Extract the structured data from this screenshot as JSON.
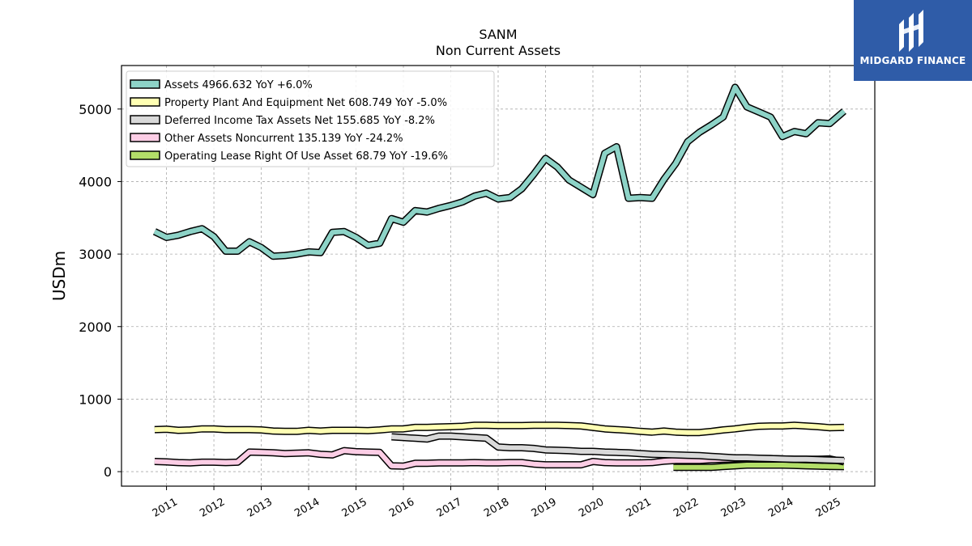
{
  "brand": {
    "name": "MIDGARD FINANCE"
  },
  "chart_data": {
    "type": "line",
    "title": "SANM",
    "subtitle": "Non Current  Assets",
    "ylabel": "USDm",
    "xlabel": "",
    "ylim": [
      -200,
      5600
    ],
    "xlim": [
      2010.05,
      2025.95
    ],
    "yticks": [
      0,
      1000,
      2000,
      3000,
      4000,
      5000
    ],
    "xticks": [
      2011,
      2012,
      2013,
      2014,
      2015,
      2016,
      2017,
      2018,
      2019,
      2020,
      2021,
      2022,
      2023,
      2024,
      2025
    ],
    "grid": true,
    "legend_position": "top-left",
    "series": [
      {
        "name": "Assets",
        "legend": "Assets  4966.632 YoY +6.0%",
        "color": "#8dd3c7",
        "x": [
          2010.75,
          2011.0,
          2011.25,
          2011.5,
          2011.75,
          2012.0,
          2012.25,
          2012.5,
          2012.75,
          2013.0,
          2013.25,
          2013.5,
          2013.75,
          2014.0,
          2014.25,
          2014.5,
          2014.75,
          2015.0,
          2015.25,
          2015.5,
          2015.75,
          2016.0,
          2016.25,
          2016.5,
          2016.75,
          2017.0,
          2017.25,
          2017.5,
          2017.75,
          2018.0,
          2018.25,
          2018.5,
          2018.75,
          2019.0,
          2019.25,
          2019.5,
          2019.75,
          2020.0,
          2020.25,
          2020.5,
          2020.75,
          2021.0,
          2021.25,
          2021.5,
          2021.75,
          2022.0,
          2022.25,
          2022.5,
          2022.75,
          2023.0,
          2023.25,
          2023.5,
          2023.75,
          2024.0,
          2024.25,
          2024.5,
          2024.75,
          2025.0,
          2025.3
        ],
        "values": [
          3310,
          3230,
          3260,
          3310,
          3350,
          3240,
          3040,
          3040,
          3170,
          3090,
          2970,
          2980,
          3000,
          3030,
          3020,
          3300,
          3310,
          3230,
          3120,
          3150,
          3490,
          3440,
          3600,
          3580,
          3630,
          3670,
          3720,
          3800,
          3840,
          3760,
          3780,
          3900,
          4100,
          4320,
          4200,
          4020,
          3920,
          3820,
          4390,
          4480,
          3770,
          3780,
          3770,
          4030,
          4250,
          4550,
          4680,
          4780,
          4890,
          5300,
          5030,
          4960,
          4890,
          4620,
          4690,
          4660,
          4810,
          4800,
          4970
        ]
      },
      {
        "name": "Property Plant And Equipment Net",
        "legend": "Property Plant And Equipment Net  608.749 YoY -5.0%",
        "color": "#ffffb3",
        "x": [
          2010.75,
          2011.0,
          2011.25,
          2011.5,
          2011.75,
          2012.0,
          2012.25,
          2012.5,
          2012.75,
          2013.0,
          2013.25,
          2013.5,
          2013.75,
          2014.0,
          2014.25,
          2014.5,
          2014.75,
          2015.0,
          2015.25,
          2015.5,
          2015.75,
          2016.0,
          2016.25,
          2016.5,
          2016.75,
          2017.0,
          2017.25,
          2017.5,
          2017.75,
          2018.0,
          2018.25,
          2018.5,
          2018.75,
          2019.0,
          2019.25,
          2019.5,
          2019.75,
          2020.0,
          2020.25,
          2020.5,
          2020.75,
          2021.0,
          2021.25,
          2021.5,
          2021.75,
          2022.0,
          2022.25,
          2022.5,
          2022.75,
          2023.0,
          2023.25,
          2023.5,
          2023.75,
          2024.0,
          2024.25,
          2024.5,
          2024.75,
          2025.0,
          2025.3
        ],
        "values": [
          580,
          585,
          570,
          575,
          590,
          590,
          580,
          580,
          580,
          575,
          560,
          555,
          555,
          570,
          560,
          570,
          570,
          570,
          565,
          575,
          590,
          590,
          610,
          610,
          615,
          620,
          625,
          640,
          640,
          635,
          635,
          635,
          640,
          640,
          640,
          635,
          630,
          610,
          590,
          580,
          570,
          555,
          545,
          560,
          545,
          540,
          540,
          555,
          575,
          590,
          610,
          625,
          630,
          630,
          640,
          630,
          620,
          605,
          610
        ]
      },
      {
        "name": "Deferred Income Tax Assets Net",
        "legend": "Deferred Income Tax Assets Net  155.685 YoY -8.2%",
        "color": "#d9d9d9",
        "x": [
          2015.75,
          2016.0,
          2016.25,
          2016.5,
          2016.75,
          2017.0,
          2017.25,
          2017.5,
          2017.75,
          2018.0,
          2018.25,
          2018.5,
          2018.75,
          2019.0,
          2019.25,
          2019.5,
          2019.75,
          2020.0,
          2020.25,
          2020.5,
          2020.75,
          2021.0,
          2021.25,
          2021.5,
          2021.75,
          2022.0,
          2022.25,
          2022.5,
          2022.75,
          2023.0,
          2023.25,
          2023.5,
          2023.75,
          2024.0,
          2024.25,
          2024.5,
          2024.75,
          2025.0,
          2025.3
        ],
        "values": [
          480,
          470,
          460,
          450,
          490,
          490,
          480,
          470,
          460,
          340,
          330,
          330,
          320,
          300,
          295,
          290,
          280,
          280,
          270,
          265,
          260,
          250,
          240,
          235,
          230,
          225,
          220,
          210,
          200,
          190,
          190,
          185,
          180,
          175,
          170,
          170,
          165,
          160,
          155
        ]
      },
      {
        "name": "Other Assets Noncurrent",
        "legend": "Other Assets Noncurrent  135.139 YoY -24.2%",
        "color": "#fccde5",
        "x": [
          2010.75,
          2011.0,
          2011.25,
          2011.5,
          2011.75,
          2012.0,
          2012.25,
          2012.5,
          2012.75,
          2013.0,
          2013.25,
          2013.5,
          2013.75,
          2014.0,
          2014.25,
          2014.5,
          2014.75,
          2015.0,
          2015.25,
          2015.5,
          2015.75,
          2016.0,
          2016.25,
          2016.5,
          2016.75,
          2017.0,
          2017.25,
          2017.5,
          2017.75,
          2018.0,
          2018.25,
          2018.5,
          2018.75,
          2019.0,
          2019.25,
          2019.5,
          2019.75,
          2020.0,
          2020.25,
          2020.5,
          2020.75,
          2021.0,
          2021.25,
          2021.5,
          2021.75,
          2022.0,
          2022.25,
          2022.5,
          2022.75,
          2023.0,
          2023.25,
          2023.5,
          2023.75,
          2024.0,
          2024.25,
          2024.5,
          2024.75,
          2025.0,
          2025.3
        ],
        "values": [
          140,
          135,
          125,
          120,
          130,
          130,
          125,
          130,
          270,
          265,
          260,
          250,
          255,
          260,
          240,
          230,
          290,
          275,
          270,
          265,
          80,
          75,
          115,
          115,
          120,
          120,
          120,
          125,
          120,
          120,
          125,
          125,
          105,
          95,
          95,
          95,
          95,
          140,
          125,
          120,
          120,
          120,
          125,
          145,
          155,
          155,
          155,
          165,
          170,
          175,
          180,
          180,
          180,
          175,
          170,
          170,
          170,
          175,
          135
        ]
      },
      {
        "name": "Operating Lease Right Of Use Asset",
        "legend": "Operating Lease Right Of Use Asset  68.79 YoY -19.6%",
        "color": "#b3de69",
        "x": [
          2021.7,
          2022.0,
          2022.25,
          2022.5,
          2022.75,
          2023.0,
          2023.25,
          2023.5,
          2023.75,
          2024.0,
          2024.25,
          2024.5,
          2024.75,
          2025.0,
          2025.3
        ],
        "values": [
          60,
          60,
          60,
          60,
          70,
          80,
          90,
          90,
          90,
          90,
          85,
          80,
          75,
          72,
          69
        ]
      }
    ]
  }
}
